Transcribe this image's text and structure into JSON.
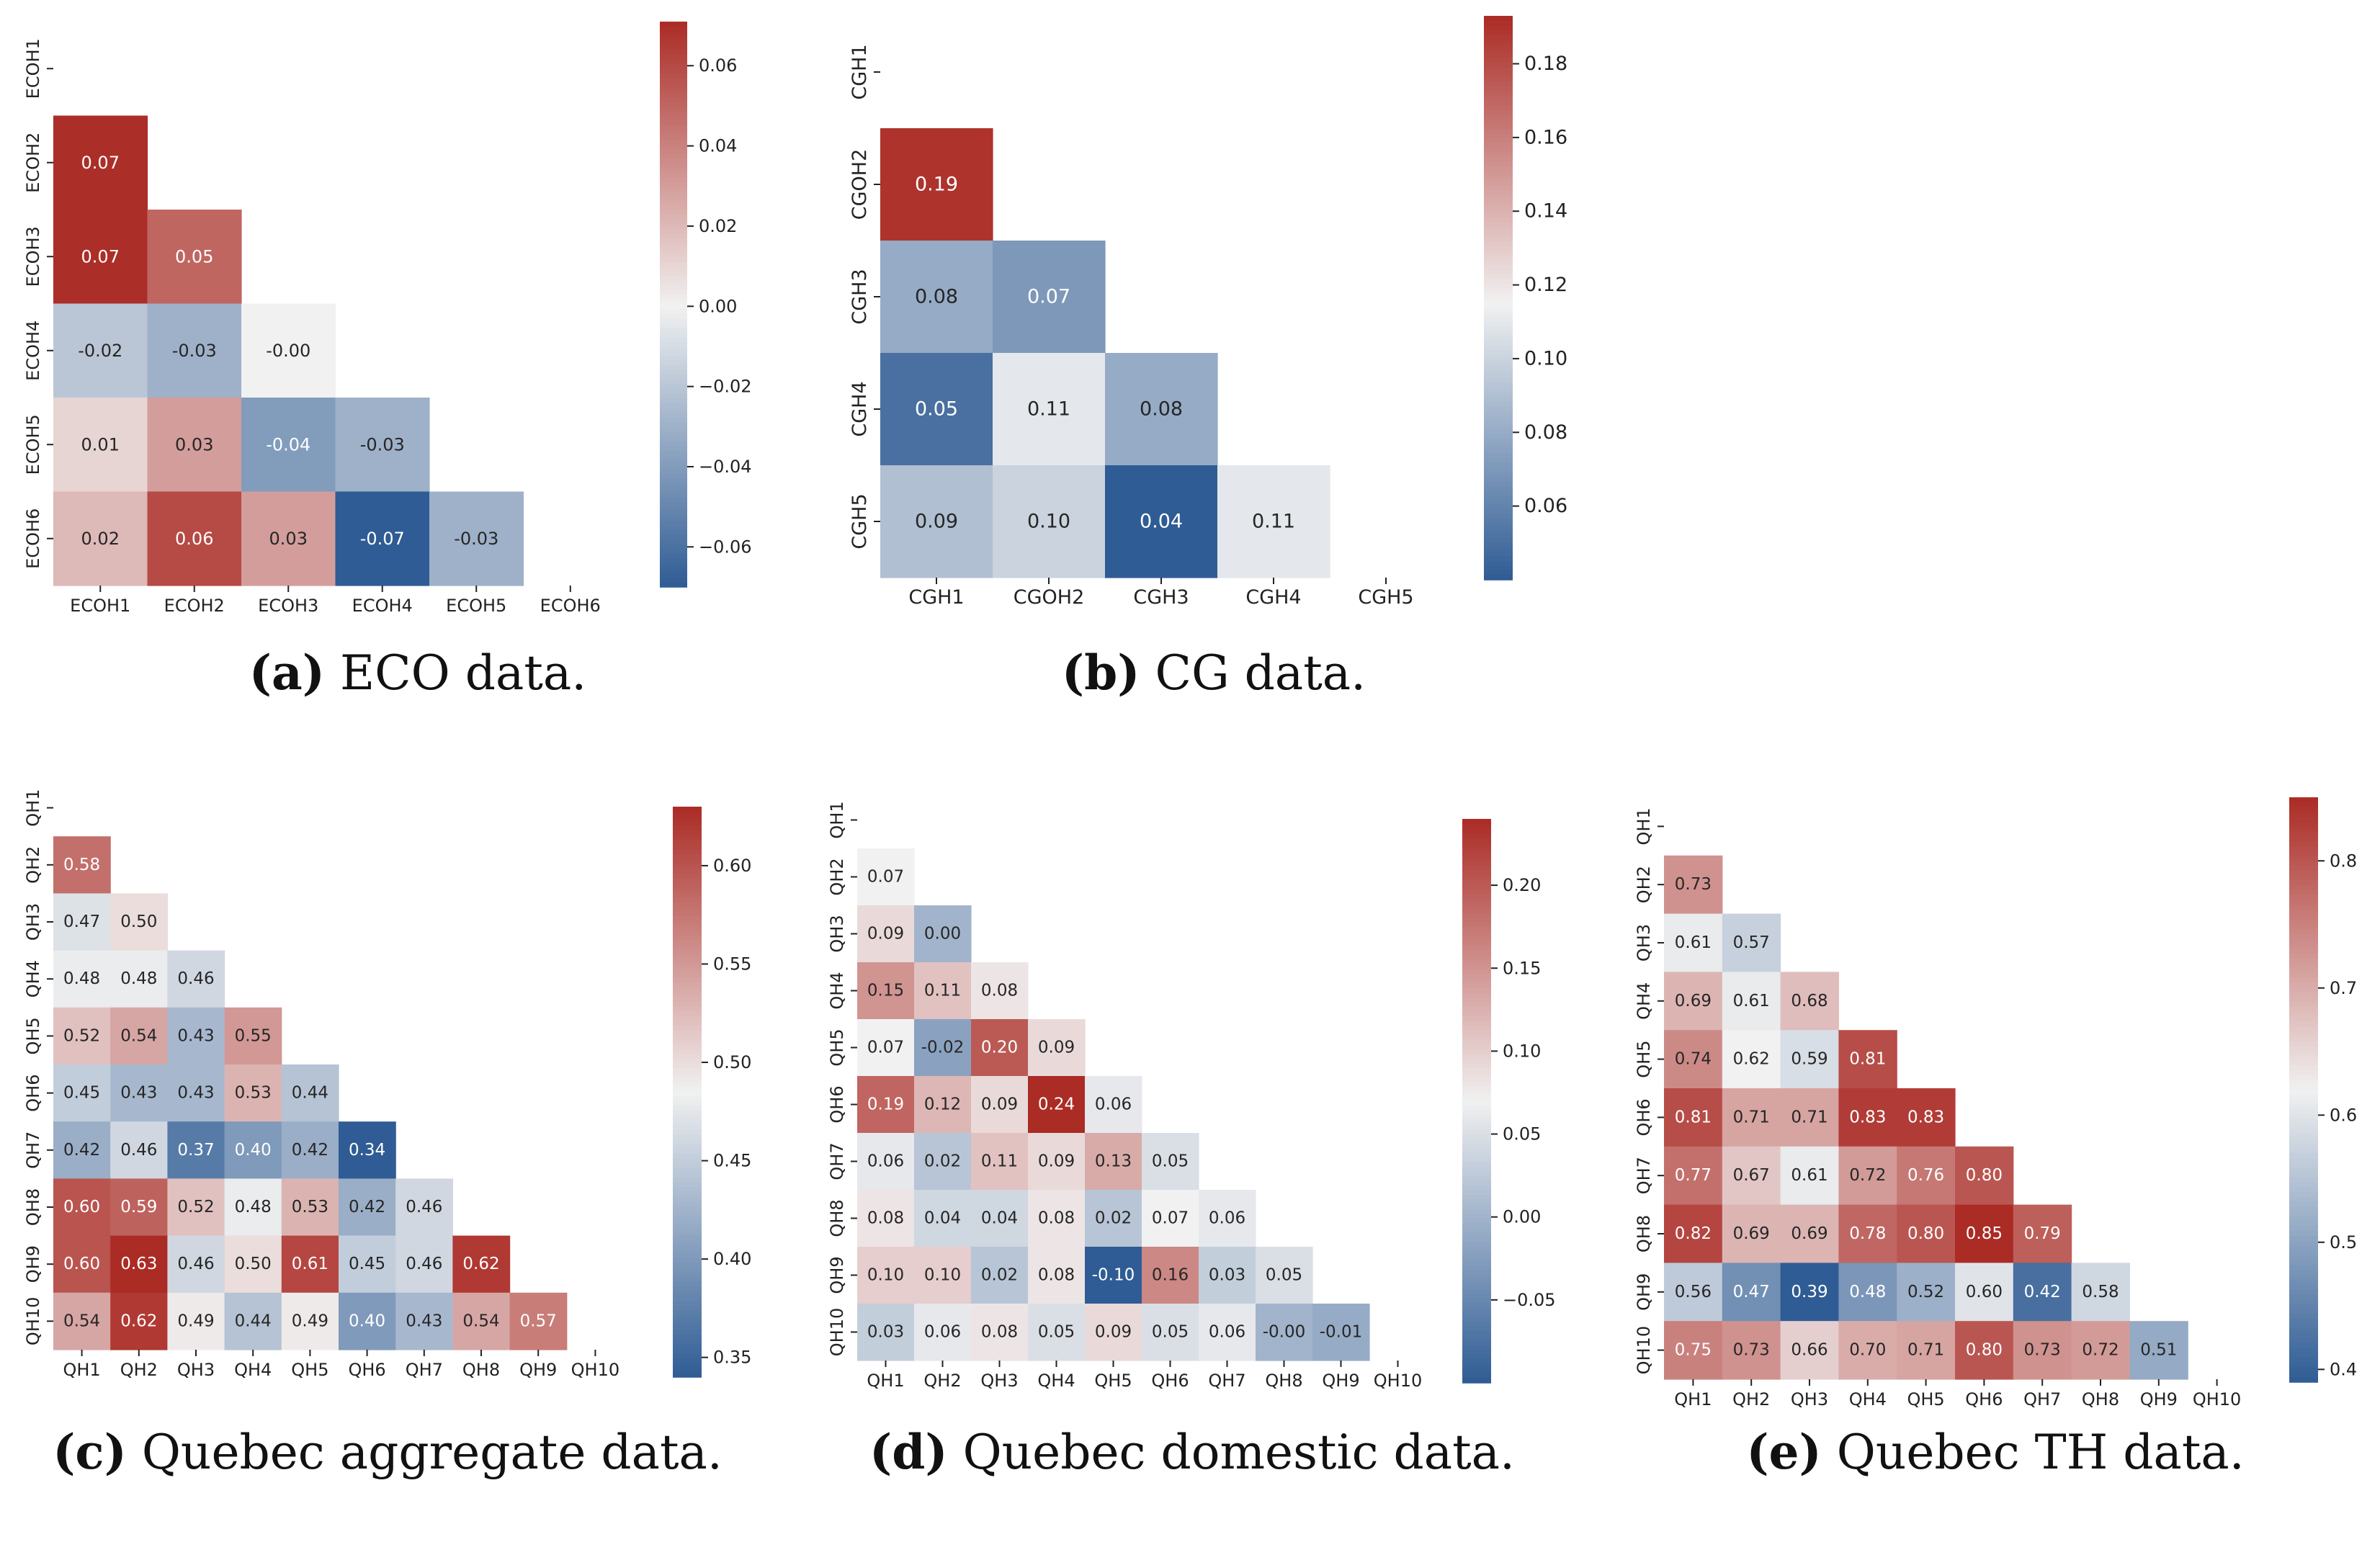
{
  "colors": {
    "low": "#2f5c94",
    "mid": "#f1f1f1",
    "high": "#ab2b25",
    "dark_text": "#262626",
    "light_text": "#ffffff"
  },
  "chart_data": [
    {
      "type": "heatmap",
      "mask": "lower-triangle",
      "labels": [
        "ECOH1",
        "ECOH2",
        "ECOH3",
        "ECOH4",
        "ECOH5",
        "ECOH6"
      ],
      "matrix": [
        [],
        [
          0.07
        ],
        [
          0.07,
          0.05
        ],
        [
          -0.02,
          -0.03,
          -0.0
        ],
        [
          0.01,
          0.03,
          -0.04,
          -0.03
        ],
        [
          0.02,
          0.06,
          0.03,
          -0.07,
          -0.03
        ]
      ],
      "matrix_text": [
        [],
        [
          "0.07"
        ],
        [
          "0.07",
          "0.05"
        ],
        [
          "-0.02",
          "-0.03",
          "-0.00"
        ],
        [
          "0.01",
          "0.03",
          "-0.04",
          "-0.03"
        ],
        [
          "0.02",
          "0.06",
          "0.03",
          "-0.07",
          "-0.03"
        ]
      ],
      "vmin": -0.07,
      "vmax": 0.071,
      "center": 0.0,
      "colorbar_ticks": [
        0.06,
        0.04,
        0.02,
        0.0,
        -0.02,
        -0.04,
        -0.06
      ],
      "colorbar_labels": [
        "0.06",
        "0.04",
        "0.02",
        "0.00",
        "−0.02",
        "−0.04",
        "−0.06"
      ],
      "caption_label": "(a)",
      "caption_text": " ECO data."
    },
    {
      "type": "heatmap",
      "mask": "lower-triangle",
      "labels": [
        "CGH1",
        "CGOH2",
        "CGH3",
        "CGH4",
        "CGH5"
      ],
      "matrix": [
        [],
        [
          0.19
        ],
        [
          0.08,
          0.07
        ],
        [
          0.05,
          0.11,
          0.08
        ],
        [
          0.09,
          0.1,
          0.04,
          0.11
        ]
      ],
      "matrix_text": [
        [],
        [
          "0.19"
        ],
        [
          "0.08",
          "0.07"
        ],
        [
          "0.05",
          "0.11",
          "0.08"
        ],
        [
          "0.09",
          "0.10",
          "0.04",
          "0.11"
        ]
      ],
      "vmin": 0.04,
      "vmax": 0.193,
      "center": 0.115,
      "colorbar_ticks": [
        0.18,
        0.16,
        0.14,
        0.12,
        0.1,
        0.08,
        0.06
      ],
      "colorbar_labels": [
        "0.18",
        "0.16",
        "0.14",
        "0.12",
        "0.10",
        "0.08",
        "0.06"
      ],
      "caption_label": "(b)",
      "caption_text": " CG data."
    },
    {
      "type": "heatmap",
      "mask": "lower-triangle",
      "labels": [
        "QH1",
        "QH2",
        "QH3",
        "QH4",
        "QH5",
        "QH6",
        "QH7",
        "QH8",
        "QH9",
        "QH10"
      ],
      "matrix": [
        [],
        [
          0.58
        ],
        [
          0.47,
          0.5
        ],
        [
          0.48,
          0.48,
          0.46
        ],
        [
          0.52,
          0.54,
          0.43,
          0.55
        ],
        [
          0.45,
          0.43,
          0.43,
          0.53,
          0.44
        ],
        [
          0.42,
          0.46,
          0.37,
          0.4,
          0.42,
          0.34
        ],
        [
          0.6,
          0.59,
          0.52,
          0.48,
          0.53,
          0.42,
          0.46
        ],
        [
          0.6,
          0.63,
          0.46,
          0.5,
          0.61,
          0.45,
          0.46,
          0.62
        ],
        [
          0.54,
          0.62,
          0.49,
          0.44,
          0.49,
          0.4,
          0.43,
          0.54,
          0.57
        ]
      ],
      "matrix_text": [
        [],
        [
          "0.58"
        ],
        [
          "0.47",
          "0.50"
        ],
        [
          "0.48",
          "0.48",
          "0.46"
        ],
        [
          "0.52",
          "0.54",
          "0.43",
          "0.55"
        ],
        [
          "0.45",
          "0.43",
          "0.43",
          "0.53",
          "0.44"
        ],
        [
          "0.42",
          "0.46",
          "0.37",
          "0.40",
          "0.42",
          "0.34"
        ],
        [
          "0.60",
          "0.59",
          "0.52",
          "0.48",
          "0.53",
          "0.42",
          "0.46"
        ],
        [
          "0.60",
          "0.63",
          "0.46",
          "0.50",
          "0.61",
          "0.45",
          "0.46",
          "0.62"
        ],
        [
          "0.54",
          "0.62",
          "0.49",
          "0.44",
          "0.49",
          "0.40",
          "0.43",
          "0.54",
          "0.57"
        ]
      ],
      "vmin": 0.34,
      "vmax": 0.63,
      "center": 0.485,
      "colorbar_ticks": [
        0.6,
        0.55,
        0.5,
        0.45,
        0.4,
        0.35
      ],
      "colorbar_labels": [
        "0.60",
        "0.55",
        "0.50",
        "0.45",
        "0.40",
        "0.35"
      ],
      "caption_label": "(c)",
      "caption_text": " Quebec aggregate data."
    },
    {
      "type": "heatmap",
      "mask": "lower-triangle",
      "labels": [
        "QH1",
        "QH2",
        "QH3",
        "QH4",
        "QH5",
        "QH6",
        "QH7",
        "QH8",
        "QH9",
        "QH10"
      ],
      "matrix": [
        [],
        [
          0.07
        ],
        [
          0.09,
          0.0
        ],
        [
          0.15,
          0.11,
          0.08
        ],
        [
          0.07,
          -0.02,
          0.2,
          0.09
        ],
        [
          0.19,
          0.12,
          0.09,
          0.24,
          0.06
        ],
        [
          0.06,
          0.02,
          0.11,
          0.09,
          0.13,
          0.05
        ],
        [
          0.08,
          0.04,
          0.04,
          0.08,
          0.02,
          0.07,
          0.06
        ],
        [
          0.1,
          0.1,
          0.02,
          0.08,
          -0.1,
          0.16,
          0.03,
          0.05
        ],
        [
          0.03,
          0.06,
          0.08,
          0.05,
          0.09,
          0.05,
          0.06,
          -0.0,
          -0.01
        ]
      ],
      "matrix_text": [
        [],
        [
          "0.07"
        ],
        [
          "0.09",
          "0.00"
        ],
        [
          "0.15",
          "0.11",
          "0.08"
        ],
        [
          "0.07",
          "-0.02",
          "0.20",
          "0.09"
        ],
        [
          "0.19",
          "0.12",
          "0.09",
          "0.24",
          "0.06"
        ],
        [
          "0.06",
          "0.02",
          "0.11",
          "0.09",
          "0.13",
          "0.05"
        ],
        [
          "0.08",
          "0.04",
          "0.04",
          "0.08",
          "0.02",
          "0.07",
          "0.06"
        ],
        [
          "0.10",
          "0.10",
          "0.02",
          "0.08",
          "-0.10",
          "0.16",
          "0.03",
          "0.05"
        ],
        [
          "0.03",
          "0.06",
          "0.08",
          "0.05",
          "0.09",
          "0.05",
          "0.06",
          "-0.00",
          "-0.01"
        ]
      ],
      "vmin": -0.1,
      "vmax": 0.24,
      "center": 0.07,
      "colorbar_ticks": [
        0.2,
        0.15,
        0.1,
        0.05,
        0.0,
        -0.05
      ],
      "colorbar_labels": [
        "0.20",
        "0.15",
        "0.10",
        "0.05",
        "0.00",
        "−0.05"
      ],
      "caption_label": "(d)",
      "caption_text": " Quebec domestic data."
    },
    {
      "type": "heatmap",
      "mask": "lower-triangle",
      "labels": [
        "QH1",
        "QH2",
        "QH3",
        "QH4",
        "QH5",
        "QH6",
        "QH7",
        "QH8",
        "QH9",
        "QH10"
      ],
      "matrix": [
        [],
        [
          0.73
        ],
        [
          0.61,
          0.57
        ],
        [
          0.69,
          0.61,
          0.68
        ],
        [
          0.74,
          0.62,
          0.59,
          0.81
        ],
        [
          0.81,
          0.71,
          0.71,
          0.83,
          0.83
        ],
        [
          0.77,
          0.67,
          0.61,
          0.72,
          0.76,
          0.8
        ],
        [
          0.82,
          0.69,
          0.69,
          0.78,
          0.8,
          0.85,
          0.79
        ],
        [
          0.56,
          0.47,
          0.39,
          0.48,
          0.52,
          0.6,
          0.42,
          0.58
        ],
        [
          0.75,
          0.73,
          0.66,
          0.7,
          0.71,
          0.8,
          0.73,
          0.72,
          0.51
        ]
      ],
      "matrix_text": [
        [],
        [
          "0.73"
        ],
        [
          "0.61",
          "0.57"
        ],
        [
          "0.69",
          "0.61",
          "0.68"
        ],
        [
          "0.74",
          "0.62",
          "0.59",
          "0.81"
        ],
        [
          "0.81",
          "0.71",
          "0.71",
          "0.83",
          "0.83"
        ],
        [
          "0.77",
          "0.67",
          "0.61",
          "0.72",
          "0.76",
          "0.80"
        ],
        [
          "0.82",
          "0.69",
          "0.69",
          "0.78",
          "0.80",
          "0.85",
          "0.79"
        ],
        [
          "0.56",
          "0.47",
          "0.39",
          "0.48",
          "0.52",
          "0.60",
          "0.42",
          "0.58"
        ],
        [
          "0.75",
          "0.73",
          "0.66",
          "0.70",
          "0.71",
          "0.80",
          "0.73",
          "0.72",
          "0.51"
        ]
      ],
      "vmin": 0.39,
      "vmax": 0.85,
      "center": 0.62,
      "colorbar_ticks": [
        0.8,
        0.7,
        0.6,
        0.5,
        0.4
      ],
      "colorbar_labels": [
        "0.8",
        "0.7",
        "0.6",
        "0.5",
        "0.4"
      ],
      "caption_label": "(e)",
      "caption_text": " Quebec TH data."
    }
  ]
}
